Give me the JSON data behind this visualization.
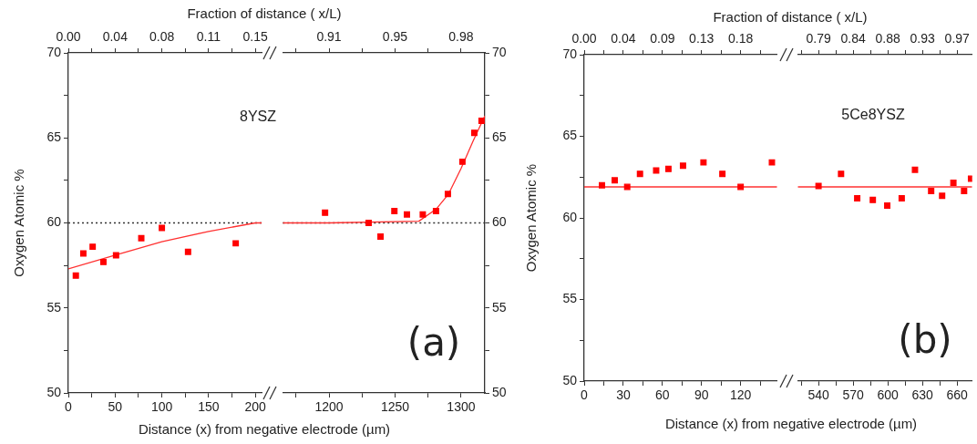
{
  "chart_data": [
    {
      "type": "scatter",
      "xlabel": "Distance (x) from negative electrode (µm)",
      "x2label": "Fraction of distance ( x/L)",
      "ylabel": "Oxygen Atomic %",
      "annotations": [
        "8YSZ"
      ],
      "xlim": [
        0,
        207
      ],
      "xticks": [
        0,
        {
          "value": 25,
          "label": null
        },
        50,
        {
          "value": 75,
          "label": null
        },
        100,
        {
          "value": 125,
          "label": null
        },
        150,
        {
          "value": 175,
          "label": null
        },
        200
      ],
      "x2lim": [
        0,
        0.15525
      ],
      "x2ticks": [
        {
          "value": 0,
          "label": "0.00"
        },
        {
          "value": 0.01875,
          "label": null
        },
        {
          "value": 0.0375,
          "label": "0.04"
        },
        {
          "value": 0.05625,
          "label": null
        },
        {
          "value": 0.075,
          "label": "0.08"
        },
        {
          "value": 0.09375,
          "label": null
        },
        {
          "value": 0.1125,
          "label": "0.11"
        },
        {
          "value": 0.13125,
          "label": null
        },
        {
          "value": 0.15,
          "label": "0.15"
        }
      ],
      "ylim": [
        50,
        70
      ],
      "yticks": [
        50,
        {
          "value": 52.5,
          "label": null
        },
        55,
        {
          "value": 57.5,
          "label": null
        },
        60,
        {
          "value": 62.5,
          "label": null
        },
        65,
        {
          "value": 67.5,
          "label": null
        },
        70
      ],
      "ref_lines": [
        {
          "axis": "y",
          "value": 60,
          "color": "#333333",
          "line_style": "dotted"
        }
      ],
      "series": [
        {
          "type": "scatter",
          "color": "#ff0000",
          "marker": "square",
          "x": [
            8,
            16,
            26,
            37.5,
            51,
            78,
            100,
            128,
            179
          ],
          "values": [
            56.9,
            58.2,
            58.6,
            57.7,
            58.1,
            59.1,
            59.7,
            58.3,
            58.8
          ]
        },
        {
          "type": "line",
          "color": "#ff3030",
          "marker": "none",
          "x": [
            0,
            50,
            100,
            150,
            200,
            207
          ],
          "values": [
            57.3,
            58.1,
            58.9,
            59.5,
            60.0,
            60.0
          ]
        }
      ]
    },
    {
      "type": "scatter",
      "annotations": [
        "(a)"
      ],
      "xlim": [
        1165,
        1318
      ],
      "xticks": [
        {
          "value": 1175,
          "label": null
        },
        1200,
        {
          "value": 1225,
          "label": null
        },
        1250,
        {
          "value": 1275,
          "label": null
        },
        1300
      ],
      "x2lim": [
        0.8855,
        0.9926
      ],
      "x2ticks": [
        {
          "value": 0.8925,
          "label": null
        },
        {
          "value": 0.91,
          "label": "0.91"
        },
        {
          "value": 0.9275,
          "label": null
        },
        {
          "value": 0.945,
          "label": "0.95"
        },
        {
          "value": 0.9625,
          "label": null
        },
        {
          "value": 0.98,
          "label": "0.98"
        }
      ],
      "ylim": [
        50,
        70
      ],
      "yticks": [
        50,
        {
          "value": 52.5,
          "label": null
        },
        55,
        {
          "value": 57.5,
          "label": null
        },
        60,
        {
          "value": 62.5,
          "label": null
        },
        65,
        {
          "value": 67.5,
          "label": null
        },
        70
      ],
      "ref_lines": [
        {
          "axis": "y",
          "value": 60,
          "color": "#333333",
          "line_style": "dotted"
        }
      ],
      "series": [
        {
          "type": "scatter",
          "color": "#ff0000",
          "marker": "square",
          "x": [
            1197,
            1230,
            1239,
            1249.5,
            1259,
            1271,
            1281,
            1290,
            1301,
            1310,
            1315.5
          ],
          "values": [
            60.6,
            60.0,
            59.2,
            60.7,
            60.5,
            60.5,
            60.7,
            61.7,
            63.6,
            65.3,
            66.0
          ]
        },
        {
          "type": "line",
          "color": "#ff3030",
          "marker": "none",
          "x": [
            1165,
            1200,
            1268,
            1281,
            1290.5,
            1300,
            1309,
            1318
          ],
          "values": [
            60.0,
            60.0,
            60.1,
            60.8,
            61.7,
            63.2,
            64.8,
            66.3
          ]
        }
      ]
    },
    {
      "type": "scatter",
      "xlabel": "Distance (x) from negative electrode (µm)",
      "x2label": "Fraction of distance ( x/L)",
      "ylabel": "Oxygen Atomic %",
      "annotations": [
        "5Ce8YSZ"
      ],
      "xlim": [
        0,
        148
      ],
      "xticks": [
        0,
        {
          "value": 15,
          "label": null
        },
        30,
        {
          "value": 45,
          "label": null
        },
        60,
        {
          "value": 75,
          "label": null
        },
        90,
        {
          "value": 105,
          "label": null
        },
        120,
        {
          "value": 135,
          "label": null
        }
      ],
      "x2lim": [
        0,
        0.222
      ],
      "x2ticks": [
        {
          "value": 0,
          "label": "0.00"
        },
        {
          "value": 0.0225,
          "label": null
        },
        {
          "value": 0.045,
          "label": "0.04"
        },
        {
          "value": 0.0675,
          "label": null
        },
        {
          "value": 0.09,
          "label": "0.09"
        },
        {
          "value": 0.1125,
          "label": null
        },
        {
          "value": 0.135,
          "label": "0.13"
        },
        {
          "value": 0.1575,
          "label": null
        },
        {
          "value": 0.18,
          "label": "0.18"
        },
        {
          "value": 0.2025,
          "label": null
        }
      ],
      "ylim": [
        50,
        70
      ],
      "yticks": [
        50,
        {
          "value": 52.5,
          "label": null
        },
        55,
        {
          "value": 57.5,
          "label": null
        },
        60,
        {
          "value": 62.5,
          "label": null
        },
        65,
        {
          "value": 67.5,
          "label": null
        },
        70
      ],
      "series": [
        {
          "type": "scatter",
          "color": "#ff0000",
          "marker": "square",
          "x": [
            13.6,
            23.4,
            33,
            42.8,
            55.2,
            64.6,
            75.8,
            91.5,
            106,
            120,
            144
          ],
          "values": [
            62.0,
            62.3,
            61.9,
            62.7,
            62.9,
            63.0,
            63.2,
            63.4,
            62.7,
            61.9,
            63.4
          ]
        },
        {
          "type": "line",
          "color": "#ff3030",
          "marker": "none",
          "x": [
            0,
            148
          ],
          "values": [
            61.9,
            61.9
          ]
        }
      ]
    },
    {
      "type": "scatter",
      "annotations": [
        "(b)"
      ],
      "tick_labels": "x",
      "xlim": [
        522,
        673
      ],
      "xticks": [
        {
          "value": 525,
          "label": null
        },
        540,
        {
          "value": 555,
          "label": null
        },
        570,
        {
          "value": 585,
          "label": null
        },
        600,
        {
          "value": 615,
          "label": null
        },
        630,
        {
          "value": 645,
          "label": null
        },
        660
      ],
      "x2lim": [
        0.763,
        0.9895
      ],
      "x2ticks": [
        {
          "value": 0.7675,
          "label": null
        },
        {
          "value": 0.79,
          "label": "0.79"
        },
        {
          "value": 0.8125,
          "label": null
        },
        {
          "value": 0.835,
          "label": "0.84"
        },
        {
          "value": 0.8575,
          "label": null
        },
        {
          "value": 0.88,
          "label": "0.88"
        },
        {
          "value": 0.9025,
          "label": null
        },
        {
          "value": 0.925,
          "label": "0.93"
        },
        {
          "value": 0.9475,
          "label": null
        },
        {
          "value": 0.97,
          "label": "0.97"
        }
      ],
      "ylim": [
        50,
        70
      ],
      "series": [
        {
          "type": "scatter",
          "color": "#ff0000",
          "marker": "square",
          "x": [
            540,
            559.5,
            573.5,
            587,
            599.5,
            612,
            623.5,
            637.5,
            647,
            656.75,
            666,
            672
          ],
          "values": [
            61.95,
            62.7,
            61.2,
            61.1,
            60.75,
            61.2,
            62.95,
            61.65,
            61.35,
            62.15,
            61.65,
            62.4
          ]
        },
        {
          "type": "line",
          "color": "#ff3030",
          "marker": "none",
          "x": [
            522,
            673
          ],
          "values": [
            61.9,
            61.9
          ]
        }
      ]
    }
  ]
}
